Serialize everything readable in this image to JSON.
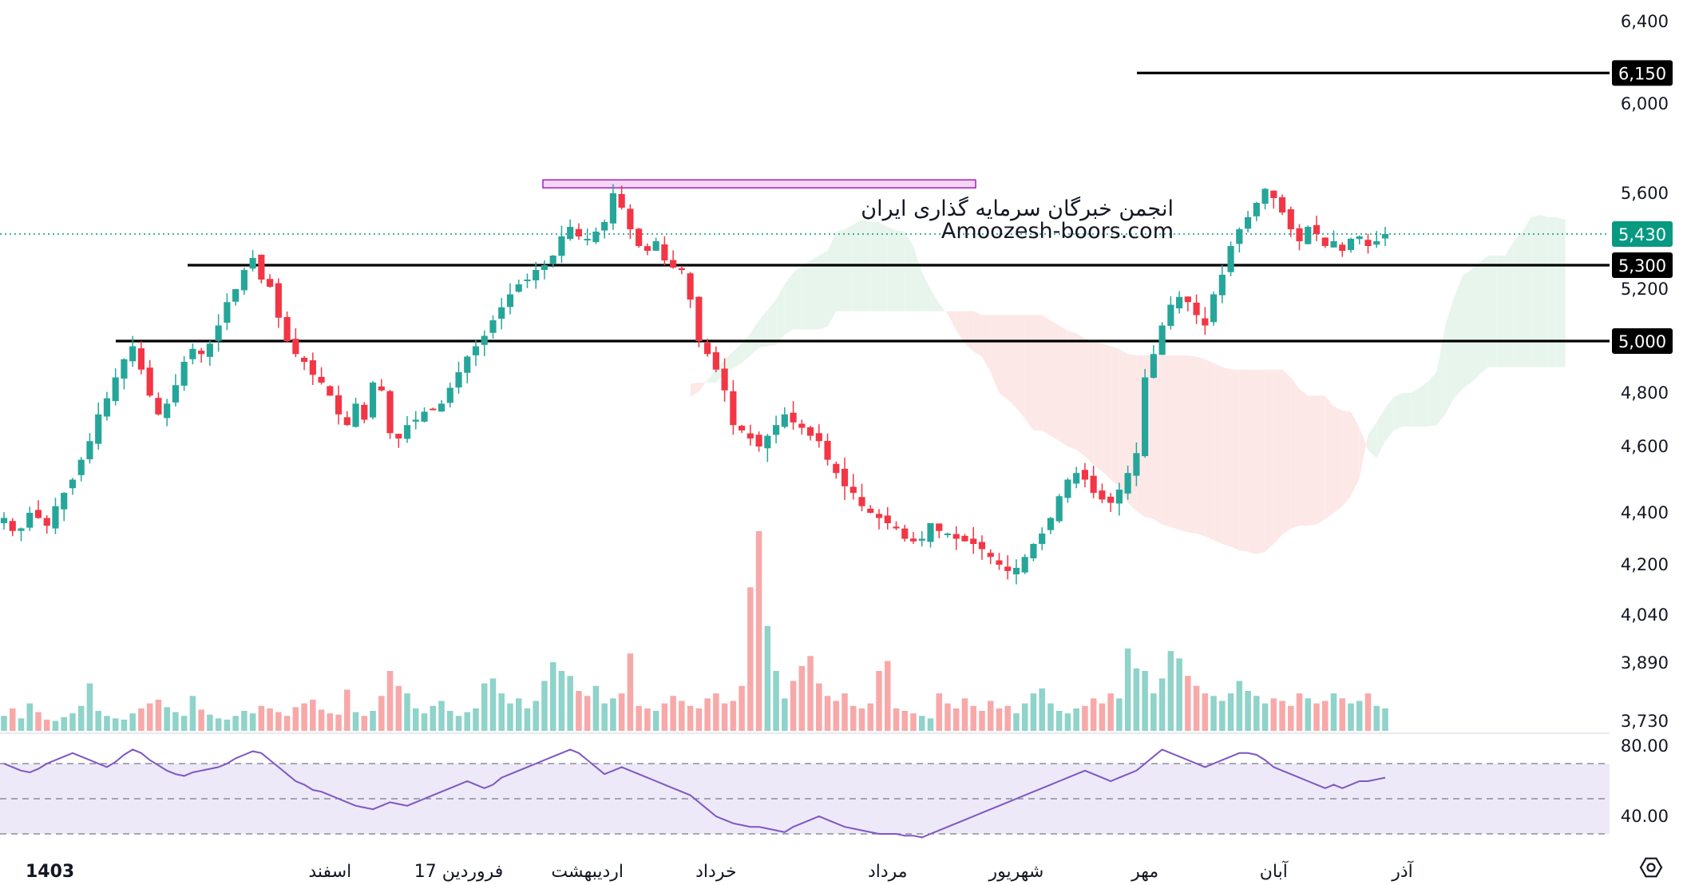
{
  "chart_data": {
    "type": "candlestick",
    "price_axis": {
      "ticks": [
        3730,
        3890,
        4040,
        4200,
        4400,
        4600,
        4800,
        5200,
        5600,
        6000,
        6400
      ],
      "tick_labels": [
        "3,730",
        "3,890",
        "4,040",
        "4,200",
        "4,400",
        "4,600",
        "4,800",
        "5,200",
        "5,600",
        "6,000",
        "6,400"
      ]
    },
    "time_axis": {
      "labels": [
        "1403",
        "اسفند",
        "17 فروردین",
        "اردیبهشت",
        "خرداد",
        "مرداد",
        "شهریور",
        "مهر",
        "آبان",
        "آذر"
      ],
      "positions": [
        3,
        38,
        53,
        68,
        83,
        103,
        118,
        133,
        148,
        163
      ]
    },
    "horizontal_levels": [
      {
        "value": 6150,
        "label": "6,150"
      },
      {
        "value": 5300,
        "label": "5,300"
      },
      {
        "value": 5000,
        "label": "5,000"
      }
    ],
    "last_price": {
      "value": 5430,
      "label": "5,430"
    },
    "resistance_zone": {
      "low": 5630,
      "high": 5660
    },
    "close_series": [
      4380,
      4330,
      4340,
      4400,
      4380,
      4350,
      4420,
      4460,
      4500,
      4560,
      4620,
      4720,
      4780,
      4860,
      4930,
      4980,
      4890,
      4790,
      4720,
      4760,
      4830,
      4920,
      4970,
      4950,
      4990,
      5060,
      5150,
      5200,
      5280,
      5330,
      5240,
      5210,
      5090,
      5000,
      4950,
      4920,
      4870,
      4840,
      4790,
      4720,
      4680,
      4760,
      4700,
      4840,
      4810,
      4650,
      4630,
      4680,
      4700,
      4730,
      4740,
      4760,
      4820,
      4880,
      4940,
      4980,
      5020,
      5080,
      5130,
      5180,
      5220,
      5240,
      5280,
      5300,
      5340,
      5420,
      5460,
      5420,
      5410,
      5440,
      5480,
      5600,
      5540,
      5450,
      5380,
      5360,
      5400,
      5320,
      5290,
      5280,
      5160,
      5000,
      4950,
      4890,
      4810,
      4680,
      4660,
      4630,
      4600,
      4640,
      4680,
      4720,
      4690,
      4670,
      4640,
      4620,
      4560,
      4520,
      4480,
      4460,
      4420,
      4400,
      4380,
      4360,
      4340,
      4300,
      4290,
      4300,
      4360,
      4330,
      4320,
      4300,
      4290,
      4280,
      4260,
      4230,
      4200,
      4180,
      4190,
      4230,
      4280,
      4320,
      4380,
      4450,
      4500,
      4520,
      4500,
      4460,
      4440,
      4430,
      4470,
      4520,
      4580,
      4860,
      4950,
      5060,
      5140,
      5170,
      5150,
      5100,
      5060,
      5180,
      5260,
      5380,
      5450,
      5500,
      5560,
      5620,
      5580,
      5520,
      5450,
      5400,
      5460,
      5430,
      5380,
      5400,
      5360,
      5410,
      5420,
      5380,
      5400,
      5430
    ],
    "volume_series": [
      12,
      18,
      10,
      22,
      15,
      9,
      8,
      11,
      14,
      20,
      38,
      16,
      12,
      10,
      9,
      14,
      18,
      22,
      25,
      19,
      15,
      12,
      28,
      17,
      13,
      10,
      9,
      12,
      16,
      14,
      20,
      18,
      15,
      12,
      19,
      22,
      25,
      17,
      14,
      13,
      33,
      15,
      12,
      16,
      28,
      48,
      36,
      30,
      18,
      14,
      20,
      24,
      16,
      12,
      15,
      18,
      38,
      42,
      30,
      22,
      26,
      18,
      24,
      40,
      55,
      48,
      44,
      32,
      28,
      36,
      22,
      26,
      30,
      62,
      20,
      18,
      16,
      22,
      28,
      24,
      20,
      18,
      26,
      30,
      22,
      24,
      36,
      115,
      160,
      84,
      48,
      26,
      40,
      52,
      60,
      38,
      28,
      24,
      30,
      20,
      18,
      22,
      48,
      56,
      18,
      16,
      14,
      12,
      10,
      30,
      22,
      18,
      26,
      20,
      16,
      24,
      18,
      20,
      14,
      22,
      30,
      34,
      22,
      16,
      14,
      18,
      20,
      26,
      22,
      30,
      26,
      66,
      50,
      48,
      30,
      42,
      64,
      58,
      44,
      36,
      30,
      28,
      24,
      30,
      40,
      32,
      28,
      22,
      26,
      24,
      20,
      30,
      26,
      22,
      24,
      30,
      26,
      22,
      24,
      30,
      20,
      18
    ],
    "rsi": {
      "ticks": [
        40,
        80
      ],
      "tick_labels": [
        "40.00",
        "80.00"
      ],
      "overbought": 70,
      "oversold": 30,
      "midline": 50,
      "values": [
        70,
        68,
        66,
        65,
        67,
        70,
        72,
        74,
        76,
        74,
        72,
        70,
        68,
        71,
        75,
        78,
        76,
        72,
        69,
        66,
        64,
        63,
        65,
        66,
        67,
        68,
        70,
        73,
        75,
        77,
        76,
        72,
        68,
        64,
        60,
        58,
        55,
        54,
        52,
        50,
        48,
        46,
        45,
        44,
        46,
        48,
        47,
        46,
        48,
        50,
        52,
        54,
        56,
        58,
        60,
        58,
        56,
        58,
        62,
        64,
        66,
        68,
        70,
        72,
        74,
        76,
        78,
        76,
        72,
        68,
        64,
        66,
        68,
        66,
        64,
        62,
        60,
        58,
        56,
        54,
        52,
        48,
        44,
        40,
        38,
        36,
        35,
        34,
        34,
        33,
        32,
        31,
        34,
        36,
        38,
        40,
        38,
        36,
        34,
        33,
        32,
        31,
        30,
        30,
        30,
        29,
        29,
        28,
        30,
        32,
        34,
        36,
        38,
        40,
        42,
        44,
        46,
        48,
        50,
        52,
        54,
        56,
        58,
        60,
        62,
        64,
        66,
        64,
        62,
        60,
        62,
        64,
        66,
        70,
        74,
        78,
        76,
        74,
        72,
        70,
        68,
        70,
        72,
        74,
        76,
        76,
        75,
        72,
        68,
        66,
        64,
        62,
        60,
        58,
        56,
        58,
        56,
        58,
        60,
        60,
        61,
        62
      ]
    }
  },
  "watermark": {
    "line1": "انجمن خبرگان سرمایه گذاری ایران",
    "line2": "Amoozesh-boors.com"
  },
  "colors": {
    "up": "#26a69a",
    "down": "#f23645",
    "level_line": "#000000",
    "last_price": "#089981",
    "rsi_line": "#7e57c2",
    "rsi_band": "#ede9f8",
    "cloud_bull": "#e8f5ec",
    "cloud_bear": "#fde8e8",
    "zone_fill": "#f5d6f5",
    "zone_border": "#a020c0"
  },
  "icons": {
    "settings": "gear-icon"
  }
}
